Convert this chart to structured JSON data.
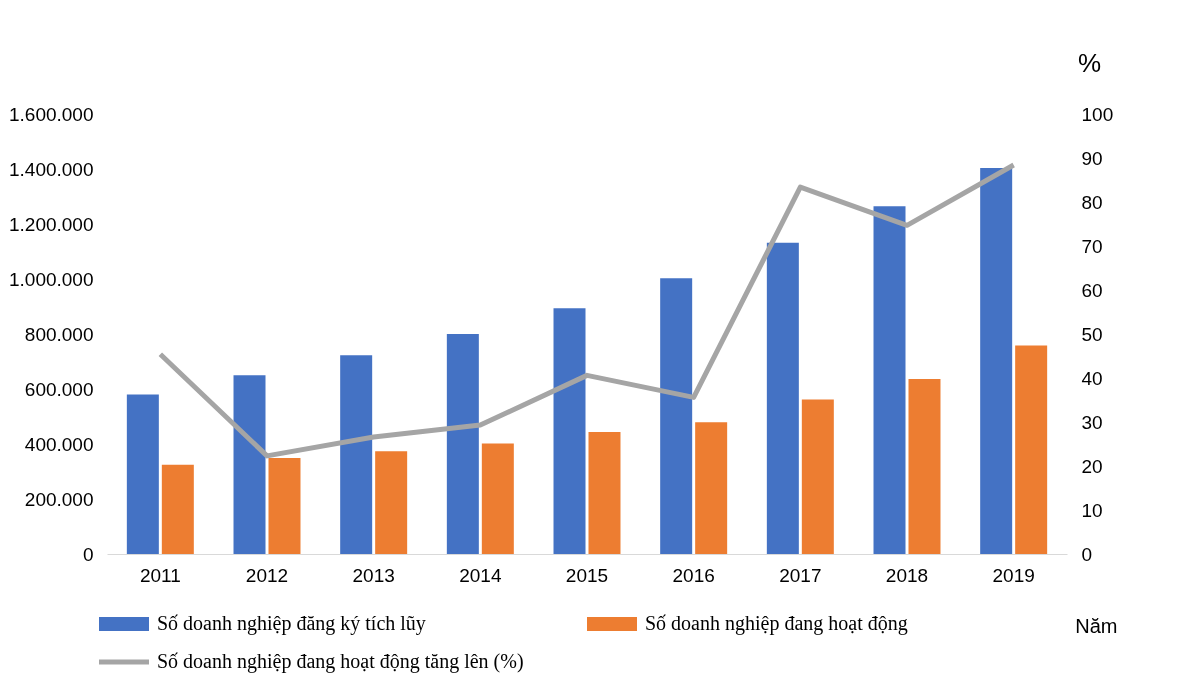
{
  "chart_data": {
    "type": "bar",
    "xlabel": "Năm",
    "y2label": "%",
    "categories": [
      "2011",
      "2012",
      "2013",
      "2014",
      "2015",
      "2016",
      "2017",
      "2018",
      "2019"
    ],
    "series": [
      {
        "name": "Số doanh nghiệp đăng ký tích lũy",
        "color": "#4472c4",
        "values": [
          580000,
          650000,
          723000,
          800000,
          894000,
          1003000,
          1132000,
          1265000,
          1404000
        ]
      },
      {
        "name": "Số doanh nghiệp đang hoạt động",
        "color": "#ed7d31",
        "values": [
          325000,
          349000,
          374000,
          402000,
          444000,
          479000,
          562000,
          636000,
          758000
        ]
      },
      {
        "name": "Số doanh nghiệp đang hoạt động tăng lên (%)",
        "type": "line",
        "axis": "y2",
        "color": "#a5a5a5",
        "values": [
          45.4,
          22.3,
          26.6,
          29.3,
          40.6,
          35.6,
          83.4,
          74.7,
          88.4
        ]
      }
    ],
    "ylim": [
      0,
      1600000
    ],
    "yticks": [
      0,
      {
        "value": 200000,
        "label": "200.000"
      },
      {
        "value": 400000,
        "label": "400.000"
      },
      {
        "value": 600000,
        "label": "600.000"
      },
      {
        "value": 800000,
        "label": "800.000"
      },
      {
        "value": 1000000,
        "label": "1.000.000"
      },
      {
        "value": 1200000,
        "label": "1.200.000"
      },
      {
        "value": 1400000,
        "label": "1.400.000"
      },
      {
        "value": 1600000,
        "label": "1.600.000"
      }
    ],
    "y2lim": [
      0,
      100
    ],
    "y2ticks": [
      0,
      10,
      20,
      30,
      40,
      50,
      60,
      70,
      80,
      90,
      100
    ],
    "grid": false,
    "legend": "bottom",
    "marker": "none",
    "line_style": "solid"
  }
}
